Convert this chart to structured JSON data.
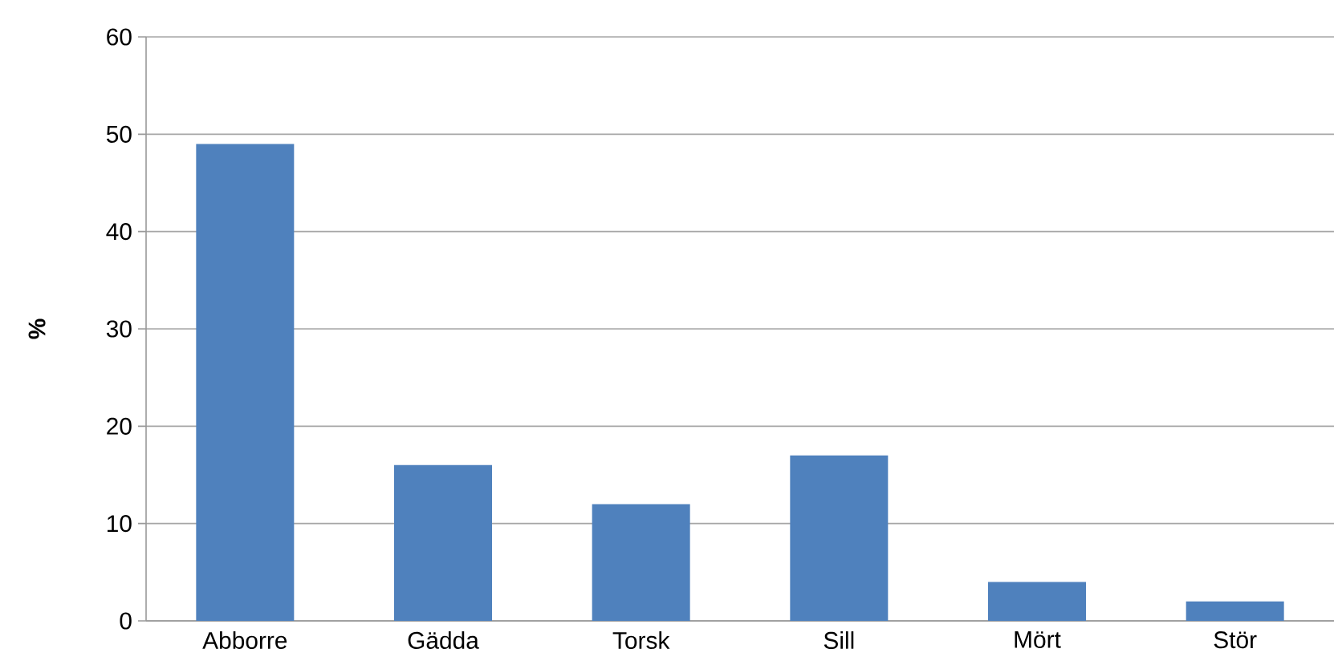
{
  "chart_data": {
    "type": "bar",
    "ylabel": "%",
    "categories": [
      "Abborre",
      "Gädda",
      "Torsk",
      "Sill",
      "Mört",
      "Stör"
    ],
    "values": [
      49,
      16,
      12,
      17,
      4,
      2
    ],
    "color": "#4f81bd",
    "ylim": [
      0,
      60
    ],
    "yticks": [
      0,
      10,
      20,
      30,
      40,
      50,
      60
    ],
    "grid": "y"
  }
}
